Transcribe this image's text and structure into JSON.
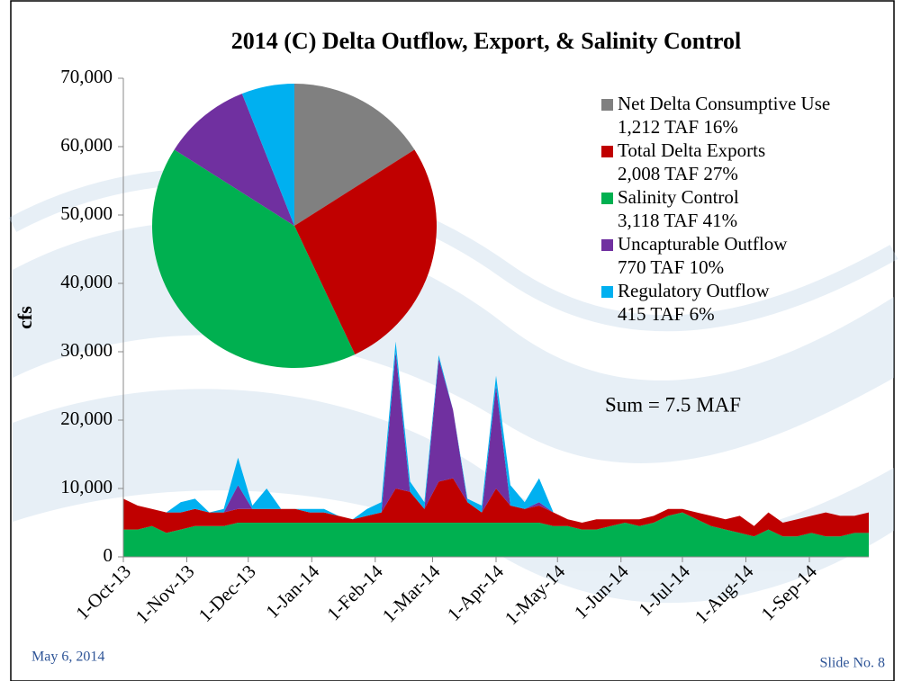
{
  "chart_data": [
    {
      "type": "area",
      "title": "2014 (C) Delta Outflow, Export, & Salinity Control",
      "y_label": "cfs",
      "x": [
        "2013-10-01",
        "2013-10-08",
        "2013-10-15",
        "2013-10-22",
        "2013-10-29",
        "2013-11-05",
        "2013-11-12",
        "2013-11-19",
        "2013-11-26",
        "2013-12-03",
        "2013-12-10",
        "2013-12-17",
        "2013-12-24",
        "2013-12-31",
        "2014-01-07",
        "2014-01-14",
        "2014-01-21",
        "2014-01-28",
        "2014-02-04",
        "2014-02-11",
        "2014-02-18",
        "2014-02-25",
        "2014-03-04",
        "2014-03-11",
        "2014-03-18",
        "2014-03-25",
        "2014-04-01",
        "2014-04-08",
        "2014-04-15",
        "2014-04-22",
        "2014-04-29",
        "2014-05-06",
        "2014-05-13",
        "2014-05-20",
        "2014-05-27",
        "2014-06-03",
        "2014-06-10",
        "2014-06-17",
        "2014-06-24",
        "2014-07-01",
        "2014-07-08",
        "2014-07-15",
        "2014-07-22",
        "2014-07-29",
        "2014-08-05",
        "2014-08-12",
        "2014-08-19",
        "2014-08-26",
        "2014-09-02",
        "2014-09-09",
        "2014-09-16",
        "2014-09-23",
        "2014-09-30"
      ],
      "series": [
        {
          "name": "Salinity Control",
          "color": "#00b050",
          "values": [
            4000,
            4000,
            4500,
            3500,
            4000,
            4500,
            4500,
            4500,
            5000,
            5000,
            5000,
            5000,
            5000,
            5000,
            5000,
            5000,
            5000,
            5000,
            5000,
            5000,
            5000,
            5000,
            5000,
            5000,
            5000,
            5000,
            5000,
            5000,
            5000,
            5000,
            4500,
            4500,
            4000,
            4000,
            4500,
            5000,
            4500,
            5000,
            6000,
            6500,
            5500,
            4500,
            4000,
            3500,
            3000,
            4000,
            3000,
            3000,
            3500,
            3000,
            3000,
            3500,
            3500
          ]
        },
        {
          "name": "Total Delta Exports",
          "color": "#c00000",
          "values": [
            4500,
            3500,
            2500,
            3000,
            2500,
            2500,
            2000,
            2000,
            2000,
            2000,
            2000,
            2000,
            2000,
            1500,
            1500,
            1000,
            500,
            1000,
            1500,
            5000,
            4500,
            2000,
            6000,
            6500,
            3000,
            1500,
            5000,
            2500,
            2000,
            2500,
            2000,
            1000,
            1000,
            1500,
            1000,
            500,
            1000,
            1000,
            1000,
            500,
            1000,
            1500,
            1500,
            2500,
            1500,
            2500,
            2000,
            2500,
            2500,
            3500,
            3000,
            2500,
            3000
          ]
        },
        {
          "name": "Uncapturable Outflow",
          "color": "#7030a0",
          "values": [
            0,
            0,
            0,
            0,
            0,
            0,
            0,
            0,
            3500,
            0,
            0,
            0,
            0,
            0,
            0,
            0,
            0,
            0,
            0,
            20000,
            0,
            0,
            18000,
            10000,
            0,
            0,
            15000,
            0,
            0,
            500,
            0,
            0,
            0,
            0,
            0,
            0,
            0,
            0,
            0,
            0,
            0,
            0,
            0,
            0,
            0,
            0,
            0,
            0,
            0,
            0,
            0,
            0,
            0
          ]
        },
        {
          "name": "Regulatory Outflow",
          "color": "#00b0f0",
          "values": [
            0,
            0,
            0,
            0,
            1500,
            1500,
            0,
            500,
            4000,
            500,
            3000,
            0,
            0,
            500,
            500,
            0,
            0,
            1000,
            1500,
            1500,
            1500,
            1000,
            500,
            0,
            500,
            1000,
            1500,
            3000,
            1000,
            3500,
            0,
            0,
            0,
            0,
            0,
            0,
            0,
            0,
            0,
            0,
            0,
            0,
            0,
            0,
            0,
            0,
            0,
            0,
            0,
            0,
            0,
            0,
            0
          ]
        }
      ],
      "ylim": [
        0,
        70000
      ],
      "yticks": [
        0,
        {
          "value": 10000,
          "label": "10,000"
        },
        {
          "value": 20000,
          "label": "20,000"
        },
        {
          "value": 30000,
          "label": "30,000"
        },
        {
          "value": 40000,
          "label": "40,000"
        },
        {
          "value": 50000,
          "label": "50,000"
        },
        {
          "value": 60000,
          "label": "60,000"
        },
        {
          "value": 70000,
          "label": "70,000"
        }
      ],
      "xlim": [
        "2013-10-01",
        "2014-09-30"
      ],
      "xticks": [
        {
          "value": "2013-10-01",
          "label": "1-Oct-13"
        },
        {
          "value": "2013-11-01",
          "label": "1-Nov-13"
        },
        {
          "value": "2013-12-01",
          "label": "1-Dec-13"
        },
        {
          "value": "2014-01-01",
          "label": "1-Jan-14"
        },
        {
          "value": "2014-02-01",
          "label": "1-Feb-14"
        },
        {
          "value": "2014-03-01",
          "label": "1-Mar-14"
        },
        {
          "value": "2014-04-01",
          "label": "1-Apr-14"
        },
        {
          "value": "2014-05-01",
          "label": "1-May-14"
        },
        {
          "value": "2014-06-01",
          "label": "1-Jun-14"
        },
        {
          "value": "2014-07-01",
          "label": "1-Jul-14"
        },
        {
          "value": "2014-08-01",
          "label": "1-Aug-14"
        },
        {
          "value": "2014-09-01",
          "label": "1-Sep-14"
        }
      ]
    },
    {
      "type": "pie",
      "categories": [
        "Net Delta Consumptive Use",
        "Total Delta Exports",
        "Salinity Control",
        "Uncapturable Outflow",
        "Regulatory Outflow"
      ],
      "values": [
        16,
        27,
        41,
        10,
        6
      ],
      "value_labels": [
        "1,212 TAF 16%",
        "2,008 TAF 27%",
        "3,118 TAF 41%",
        "770 TAF 10%",
        "415 TAF 6%"
      ],
      "colors": [
        "#808080",
        "#c00000",
        "#00b050",
        "#7030a0",
        "#00b0f0"
      ],
      "annotation": "Sum = 7.5 MAF"
    }
  ],
  "footer": {
    "date": "May 6, 2014",
    "slide": "Slide No. 8"
  }
}
